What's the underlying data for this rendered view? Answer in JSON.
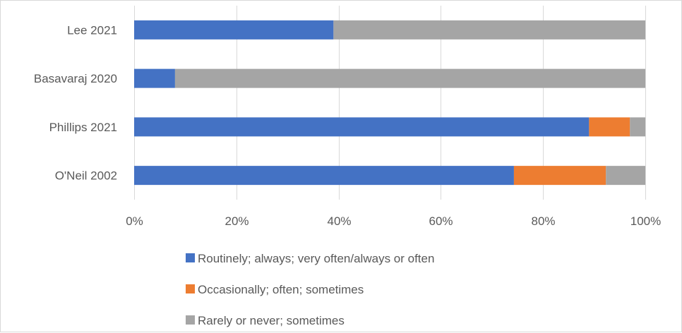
{
  "chart_data": {
    "type": "bar",
    "orientation": "horizontal",
    "stacked": "percent",
    "categories": [
      "Lee 2021",
      "Basavaraj 2020",
      "Phillips 2021",
      "O'Neil 2002"
    ],
    "series": [
      {
        "name": "Routinely; always; very often/always or often",
        "color": "#4472c4",
        "values": [
          39,
          8,
          89,
          74.3
        ]
      },
      {
        "name": "Occasionally; often; sometimes",
        "color": "#ed7d31",
        "values": [
          0,
          0,
          8,
          18
        ]
      },
      {
        "name": "Rarely or never; sometimes",
        "color": "#a5a5a5",
        "values": [
          61,
          92,
          3,
          7.7
        ]
      }
    ],
    "xlim": [
      0,
      100
    ],
    "x_ticks": [
      "0%",
      "20%",
      "40%",
      "60%",
      "80%",
      "100%"
    ],
    "grid": "vertical",
    "legend_position": "bottom"
  }
}
